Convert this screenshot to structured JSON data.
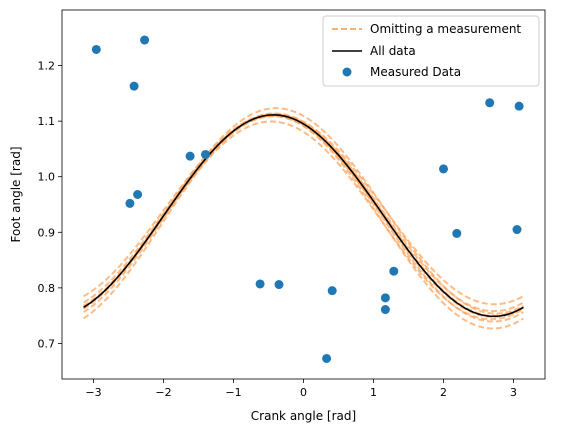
{
  "chart_data": {
    "type": "line",
    "xlabel": "Crank angle [rad]",
    "ylabel": "Foot angle [rad]",
    "xlim": [
      -3.45,
      3.45
    ],
    "ylim": [
      0.636,
      1.3
    ],
    "xticks": [
      -3,
      -2,
      -1,
      0,
      1,
      2,
      3
    ],
    "yticks": [
      0.7,
      0.8,
      0.9,
      1.0,
      1.1,
      1.2
    ],
    "grid": false,
    "legend_position": "top-right",
    "model": {
      "offset": 0.93,
      "cos_amp": 0.165,
      "sin_amp": -0.075,
      "range": [
        -3.1416,
        3.1416
      ]
    },
    "loo_band": {
      "count": 8,
      "max_deviation": 0.02
    },
    "legend": [
      {
        "label": "Omitting a measurement",
        "style": "dashed",
        "color": "#ffa45c"
      },
      {
        "label": "All data",
        "style": "solid",
        "color": "#000000"
      },
      {
        "label": "Measured Data",
        "style": "marker",
        "color": "#1f77b4"
      }
    ],
    "points": [
      {
        "x": -2.96,
        "y": 1.229
      },
      {
        "x": -2.27,
        "y": 1.246
      },
      {
        "x": -2.42,
        "y": 1.163
      },
      {
        "x": -2.48,
        "y": 0.952
      },
      {
        "x": -2.37,
        "y": 0.968
      },
      {
        "x": -1.62,
        "y": 1.037
      },
      {
        "x": -1.4,
        "y": 1.04
      },
      {
        "x": -0.62,
        "y": 0.807
      },
      {
        "x": -0.35,
        "y": 0.806
      },
      {
        "x": 0.33,
        "y": 0.673
      },
      {
        "x": 0.41,
        "y": 0.795
      },
      {
        "x": 1.17,
        "y": 0.782
      },
      {
        "x": 1.17,
        "y": 0.761
      },
      {
        "x": 1.29,
        "y": 0.83
      },
      {
        "x": 2.0,
        "y": 1.014
      },
      {
        "x": 2.19,
        "y": 0.898
      },
      {
        "x": 2.66,
        "y": 1.133
      },
      {
        "x": 3.05,
        "y": 0.905
      },
      {
        "x": 3.08,
        "y": 1.127
      }
    ],
    "colors": {
      "points": "#1f77b4",
      "fit": "#000000",
      "loo": "#ffa45c"
    }
  }
}
